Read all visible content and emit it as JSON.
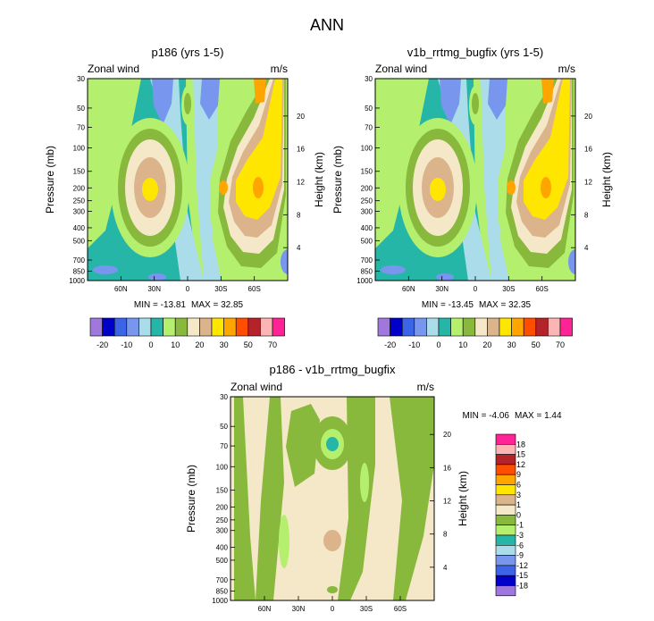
{
  "figure": {
    "title": "ANN"
  },
  "chart_data": [
    {
      "type": "heatmap",
      "title": "p186 (yrs 1-5)",
      "left_label": "Zonal wind",
      "right_label": "m/s",
      "xlabel": "",
      "ylabel": "Pressure (mb)",
      "ylabel_right": "Height (km)",
      "x_range": [
        90,
        -90
      ],
      "x_ticks": [
        "60N",
        "30N",
        "0",
        "30S",
        "60S"
      ],
      "x_tick_values": [
        60,
        30,
        0,
        -30,
        -60
      ],
      "y_range": [
        30,
        1000
      ],
      "y_ticks": [
        "30",
        "50",
        "70",
        "100",
        "150",
        "200",
        "250",
        "300",
        "400",
        "500",
        "700",
        "850",
        "1000"
      ],
      "y_tick_values": [
        30,
        50,
        70,
        100,
        150,
        200,
        250,
        300,
        400,
        500,
        700,
        850,
        1000
      ],
      "y_right_ticks": [
        "4",
        "8",
        "12",
        "16",
        "20"
      ],
      "y_right_tick_values": [
        4,
        8,
        12,
        16,
        20
      ],
      "min_text": "MIN = -13.81",
      "max_text": "MAX =  32.85",
      "min": -13.81,
      "max": 32.85,
      "levels": [
        -25,
        -20,
        -15,
        -10,
        -5,
        0,
        5,
        10,
        15,
        20,
        25,
        30,
        40,
        50,
        60,
        70
      ],
      "colorbar": "horizontal",
      "colorbar_labels": [
        "-20",
        "-10",
        "0",
        "10",
        "20",
        "30",
        "50",
        "70"
      ],
      "colors": [
        "#9f77dd",
        "#0000c8",
        "#3c64e6",
        "#7896ee",
        "#aadcea",
        "#26b6a8",
        "#b4f06e",
        "#88b93c",
        "#f5e8c8",
        "#dcb48c",
        "#ffe600",
        "#ffa500",
        "#ff4e00",
        "#b4222a",
        "#fcb4b4",
        "#ff2396"
      ]
    },
    {
      "type": "heatmap",
      "title": "v1b_rrtmg_bugfix (yrs 1-5)",
      "left_label": "Zonal wind",
      "right_label": "m/s",
      "xlabel": "",
      "ylabel": "Pressure (mb)",
      "ylabel_right": "Height (km)",
      "x_range": [
        90,
        -90
      ],
      "x_ticks": [
        "60N",
        "30N",
        "0",
        "30S",
        "60S"
      ],
      "x_tick_values": [
        60,
        30,
        0,
        -30,
        -60
      ],
      "y_range": [
        30,
        1000
      ],
      "y_ticks": [
        "30",
        "50",
        "70",
        "100",
        "150",
        "200",
        "250",
        "300",
        "400",
        "500",
        "700",
        "850",
        "1000"
      ],
      "y_tick_values": [
        30,
        50,
        70,
        100,
        150,
        200,
        250,
        300,
        400,
        500,
        700,
        850,
        1000
      ],
      "y_right_ticks": [
        "4",
        "8",
        "12",
        "16",
        "20"
      ],
      "y_right_tick_values": [
        4,
        8,
        12,
        16,
        20
      ],
      "min_text": "MIN = -13.45",
      "max_text": "MAX =  32.35",
      "min": -13.45,
      "max": 32.35,
      "levels": [
        -25,
        -20,
        -15,
        -10,
        -5,
        0,
        5,
        10,
        15,
        20,
        25,
        30,
        40,
        50,
        60,
        70
      ],
      "colorbar": "horizontal",
      "colorbar_labels": [
        "-20",
        "-10",
        "0",
        "10",
        "20",
        "30",
        "50",
        "70"
      ],
      "colors": [
        "#9f77dd",
        "#0000c8",
        "#3c64e6",
        "#7896ee",
        "#aadcea",
        "#26b6a8",
        "#b4f06e",
        "#88b93c",
        "#f5e8c8",
        "#dcb48c",
        "#ffe600",
        "#ffa500",
        "#ff4e00",
        "#b4222a",
        "#fcb4b4",
        "#ff2396"
      ]
    },
    {
      "type": "heatmap",
      "title": "p186 - v1b_rrtmg_bugfix",
      "left_label": "Zonal wind",
      "right_label": "m/s",
      "xlabel": "",
      "ylabel": "Pressure (mb)",
      "ylabel_right": "Height (km)",
      "x_range": [
        90,
        -90
      ],
      "x_ticks": [
        "60N",
        "30N",
        "0",
        "30S",
        "60S"
      ],
      "x_tick_values": [
        60,
        30,
        0,
        -30,
        -60
      ],
      "y_range": [
        30,
        1000
      ],
      "y_ticks": [
        "30",
        "50",
        "70",
        "100",
        "150",
        "200",
        "250",
        "300",
        "400",
        "500",
        "700",
        "850",
        "1000"
      ],
      "y_tick_values": [
        30,
        50,
        70,
        100,
        150,
        200,
        250,
        300,
        400,
        500,
        700,
        850,
        1000
      ],
      "y_right_ticks": [
        "4",
        "8",
        "12",
        "16",
        "20"
      ],
      "y_right_tick_values": [
        4,
        8,
        12,
        16,
        20
      ],
      "min_text": "MIN =  -4.06",
      "max_text": "MAX =   1.44",
      "min": -4.06,
      "max": 1.44,
      "levels": [
        -18,
        -15,
        -12,
        -9,
        -6,
        -3,
        -1,
        0,
        1,
        3,
        6,
        9,
        12,
        15,
        18
      ],
      "colorbar": "vertical",
      "colorbar_labels": [
        "18",
        "15",
        "12",
        "9",
        "6",
        "3",
        "1",
        "0",
        "-1",
        "-3",
        "-6",
        "-9",
        "-12",
        "-15",
        "-18"
      ],
      "colors": [
        "#ff2396",
        "#fcb4b4",
        "#b4222a",
        "#ff4e00",
        "#ffa500",
        "#ffe600",
        "#dcb48c",
        "#f5e8c8",
        "#88b93c",
        "#b4f06e",
        "#26b6a8",
        "#aadcea",
        "#7896ee",
        "#3c64e6",
        "#0000c8",
        "#9f77dd"
      ]
    }
  ]
}
